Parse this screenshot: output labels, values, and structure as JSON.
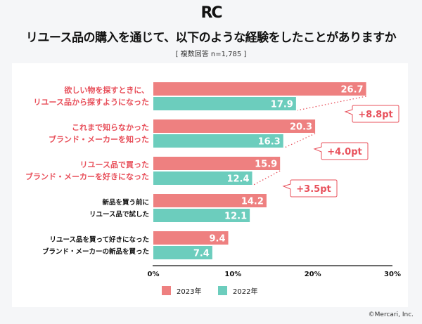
{
  "logo": "RC",
  "title": "リユース品の購入を通じて、以下のような経験をしたことがありますか",
  "subtitle": "[ 複数回答 n=1,785 ]",
  "credit": "©Mercari, Inc.",
  "colors": {
    "2023": "#ee8080",
    "2022": "#6ccdbd",
    "highlight_label": "#e8505b",
    "normal_label": "#111111"
  },
  "chart_data": {
    "type": "bar",
    "orientation": "horizontal",
    "categories": [
      [
        "欲しい物を探すときに、",
        "リユース品から探すようになった"
      ],
      [
        "これまで知らなかった",
        "ブランド・メーカーを知った"
      ],
      [
        "リユース品で買った",
        "ブランド・メーカーを好きになった"
      ],
      [
        "新品を買う前に",
        "リユース品で試した"
      ],
      [
        "リユース品を買って好きになった",
        "ブランド・メーカーの新品を買った"
      ]
    ],
    "highlighted": [
      true,
      true,
      true,
      false,
      false
    ],
    "series": [
      {
        "name": "2023年",
        "values": [
          26.7,
          20.3,
          15.9,
          14.2,
          9.4
        ]
      },
      {
        "name": "2022年",
        "values": [
          17.9,
          16.3,
          12.4,
          12.1,
          7.4
        ]
      }
    ],
    "value_labels": [
      [
        "26.7",
        "20.3",
        "15.9",
        "14.2",
        "9.4"
      ],
      [
        "17.9",
        "16.3",
        "12.4",
        "12.1",
        "7.4"
      ]
    ],
    "annotations": [
      "+8.8pt",
      "+4.0pt",
      "+3.5pt"
    ],
    "xlim": [
      0,
      30
    ],
    "xticks": [
      "0%",
      "10%",
      "20%",
      "30%"
    ],
    "legend": "bottom-left",
    "grid": false
  }
}
